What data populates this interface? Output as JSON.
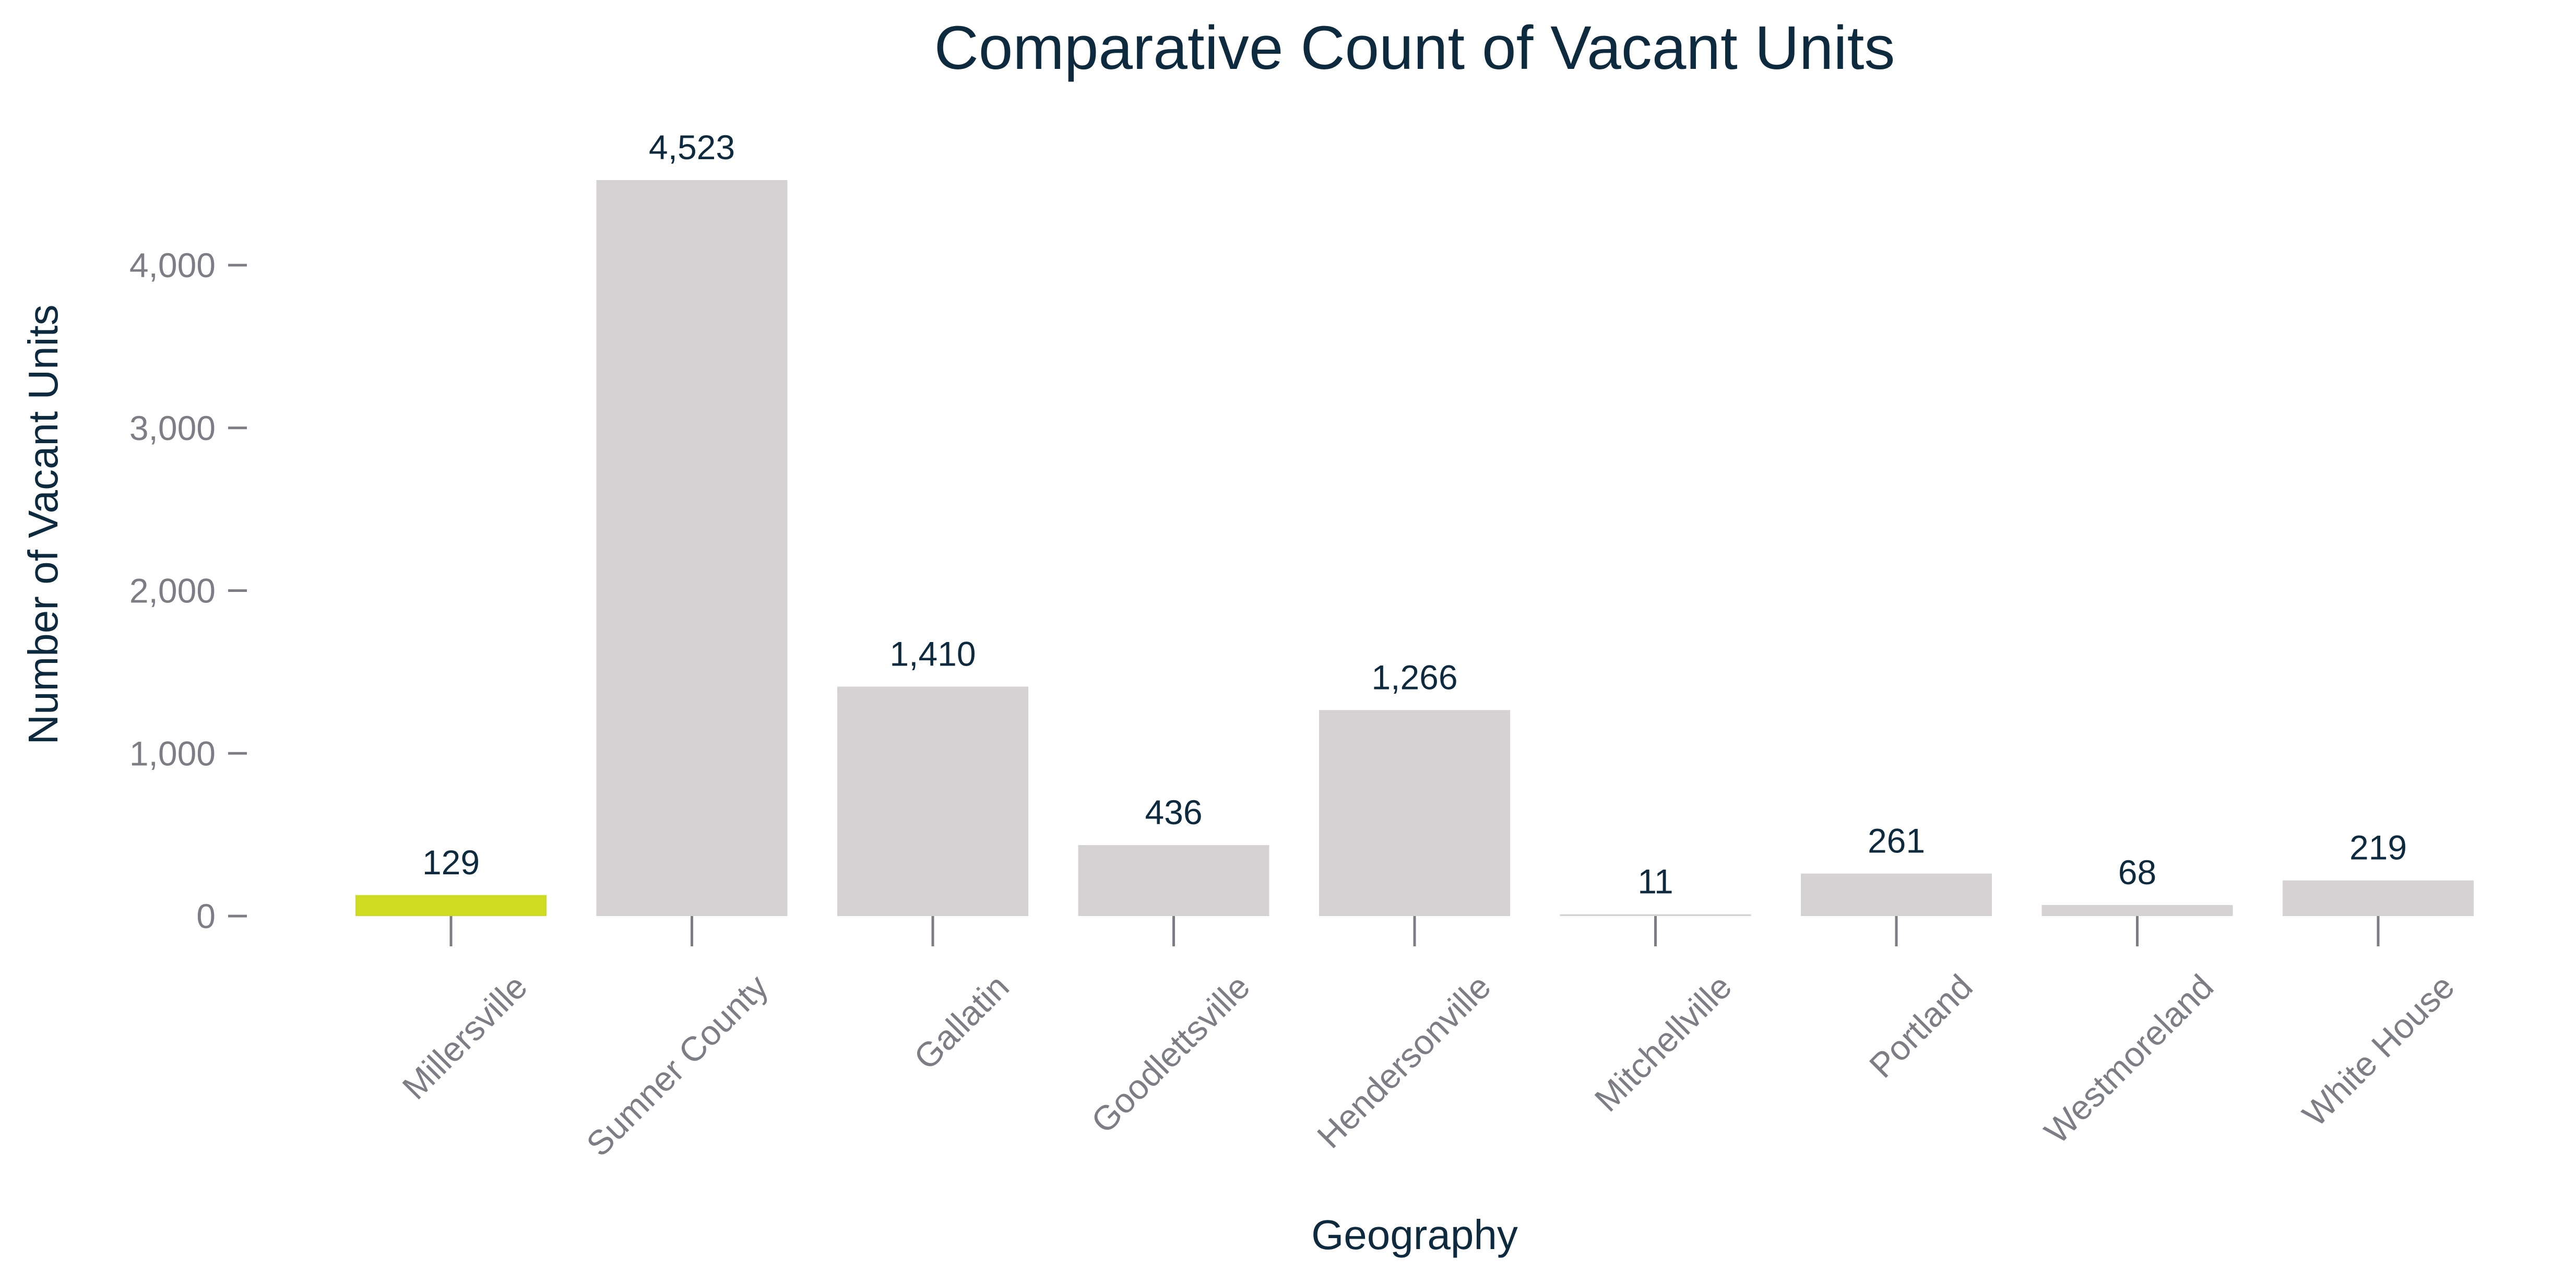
{
  "chart_data": {
    "type": "bar",
    "title": "Comparative Count of Vacant Units",
    "xlabel": "Geography",
    "ylabel": "Number of Vacant Units",
    "categories": [
      "Millersville",
      "Sumner County",
      "Gallatin",
      "Goodlettsville",
      "Hendersonville",
      "Mitchellville",
      "Portland",
      "Westmoreland",
      "White House"
    ],
    "values": [
      129,
      4523,
      1410,
      436,
      1266,
      11,
      261,
      68,
      219
    ],
    "value_labels": [
      "129",
      "4,523",
      "1,410",
      "436",
      "1,266",
      "11",
      "261",
      "68",
      "219"
    ],
    "highlight_category": "Millersville",
    "colors": {
      "default_bar": "#d6d1d3",
      "highlight_bar": "#cddc20",
      "text": "#0e2a3f",
      "axis": "#7d7d85"
    },
    "y_ticks": [
      0,
      1000,
      2000,
      3000,
      4000
    ],
    "y_tick_labels": [
      "0",
      "1,000",
      "2,000",
      "3,000",
      "4,000"
    ],
    "ylim": [
      0,
      4523
    ],
    "grid": false,
    "legend": "none"
  }
}
